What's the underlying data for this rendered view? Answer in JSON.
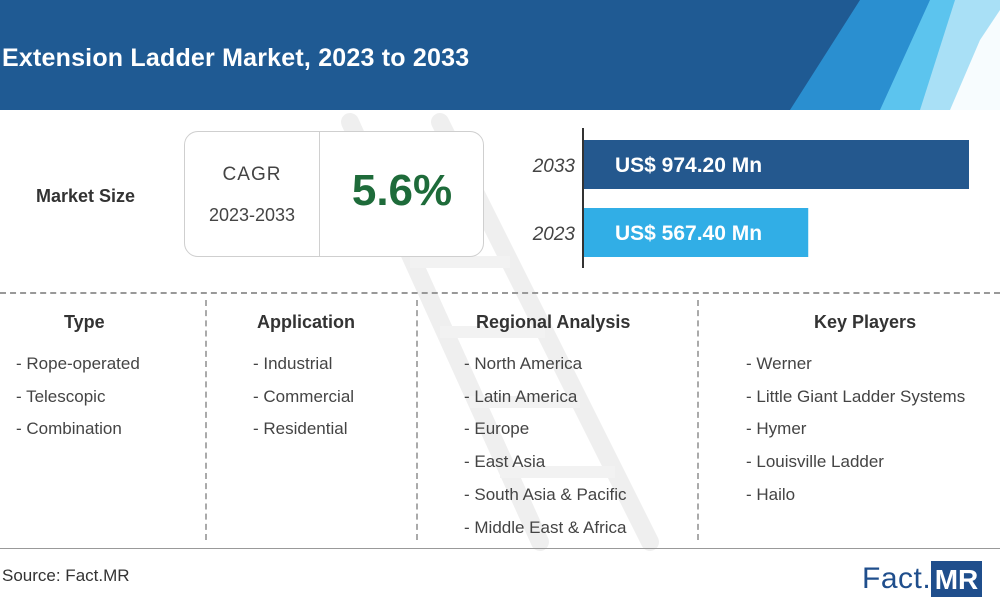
{
  "header": {
    "title": "Extension Ladder Market, 2023 to 2033"
  },
  "market_size": {
    "label": "Market Size"
  },
  "cagr": {
    "label": "CAGR",
    "period": "2023-2033",
    "value": "5.6%"
  },
  "chart_data": {
    "type": "bar",
    "orientation": "horizontal",
    "categories": [
      "2033",
      "2023"
    ],
    "values": [
      974.2,
      567.4
    ],
    "value_labels": [
      "US$ 974.20 Mn",
      "US$ 567.40 Mn"
    ],
    "xlabel": "",
    "ylabel": "",
    "colors": [
      "#24588e",
      "#31aee6"
    ]
  },
  "columns": {
    "type": {
      "heading": "Type",
      "items": [
        "- Rope-operated",
        "- Telescopic",
        "- Combination"
      ]
    },
    "application": {
      "heading": "Application",
      "items": [
        "- Industrial",
        "- Commercial",
        "- Residential"
      ]
    },
    "regional": {
      "heading": "Regional Analysis",
      "items": [
        "- North America",
        "- Latin America",
        "- Europe",
        "- East Asia",
        "- South Asia & Pacific",
        "- Middle East & Africa"
      ]
    },
    "players": {
      "heading": "Key Players",
      "items": [
        "- Werner",
        "- Little Giant Ladder Systems",
        "- Hymer",
        "- Louisville Ladder",
        "- Hailo"
      ]
    }
  },
  "footer": {
    "source": "Source: Fact.MR"
  },
  "logo": {
    "fact": "Fact",
    "dot": ".",
    "mr": "MR"
  },
  "colors": {
    "dark_blue": "#1f5289",
    "light_blue": "#31aee6",
    "green": "#1e6b3a"
  }
}
